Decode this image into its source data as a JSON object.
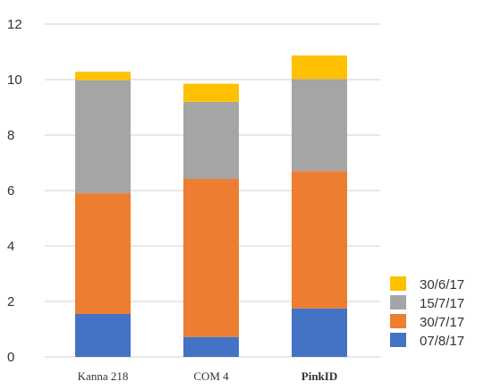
{
  "chart_data": {
    "type": "bar",
    "stacked": true,
    "categories": [
      "Kanna 218",
      "COM 4",
      "PinkID"
    ],
    "category_bold": [
      false,
      false,
      true
    ],
    "series": [
      {
        "name": "07/8/17",
        "color": "#4472C4",
        "values": [
          1.55,
          0.72,
          1.75
        ]
      },
      {
        "name": "30/7/17",
        "color": "#ED7D31",
        "values": [
          4.35,
          5.7,
          4.95
        ]
      },
      {
        "name": "15/7/17",
        "color": "#A5A5A5",
        "values": [
          4.08,
          2.78,
          3.32
        ]
      },
      {
        "name": "30/6/17",
        "color": "#FFC000",
        "values": [
          0.3,
          0.65,
          0.85
        ]
      }
    ],
    "ylim": [
      0,
      12
    ],
    "yticks": [
      0,
      2,
      4,
      6,
      8,
      10,
      12
    ],
    "grid": true,
    "legend_position": "bottom-right",
    "legend_order": [
      "30/6/17",
      "15/7/17",
      "30/7/17",
      "07/8/17"
    ],
    "title": "",
    "xlabel": "",
    "ylabel": ""
  }
}
